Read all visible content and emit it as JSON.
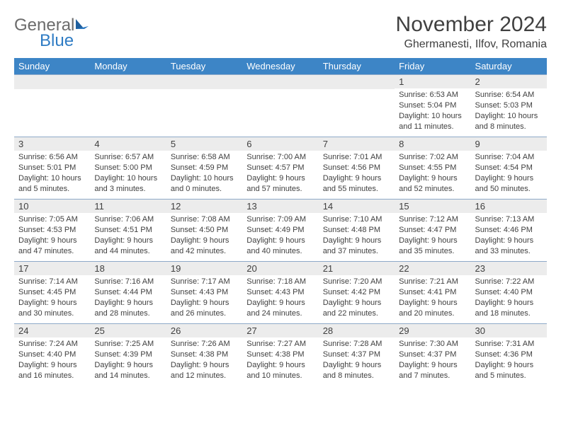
{
  "logo": {
    "text_gray": "General",
    "text_blue": "Blue"
  },
  "title": "November 2024",
  "location": "Ghermanesti, Ilfov, Romania",
  "colors": {
    "header_bg": "#3d85c6",
    "header_text": "#ffffff",
    "daynum_bg": "#ececec",
    "text": "#404040",
    "week_border": "#8ea9c9",
    "logo_blue": "#2f7cc4",
    "logo_gray": "#6b6b6b"
  },
  "day_headers": [
    "Sunday",
    "Monday",
    "Tuesday",
    "Wednesday",
    "Thursday",
    "Friday",
    "Saturday"
  ],
  "weeks": [
    [
      {
        "n": "",
        "lines": []
      },
      {
        "n": "",
        "lines": []
      },
      {
        "n": "",
        "lines": []
      },
      {
        "n": "",
        "lines": []
      },
      {
        "n": "",
        "lines": []
      },
      {
        "n": "1",
        "lines": [
          "Sunrise: 6:53 AM",
          "Sunset: 5:04 PM",
          "Daylight: 10 hours and 11 minutes."
        ]
      },
      {
        "n": "2",
        "lines": [
          "Sunrise: 6:54 AM",
          "Sunset: 5:03 PM",
          "Daylight: 10 hours and 8 minutes."
        ]
      }
    ],
    [
      {
        "n": "3",
        "lines": [
          "Sunrise: 6:56 AM",
          "Sunset: 5:01 PM",
          "Daylight: 10 hours and 5 minutes."
        ]
      },
      {
        "n": "4",
        "lines": [
          "Sunrise: 6:57 AM",
          "Sunset: 5:00 PM",
          "Daylight: 10 hours and 3 minutes."
        ]
      },
      {
        "n": "5",
        "lines": [
          "Sunrise: 6:58 AM",
          "Sunset: 4:59 PM",
          "Daylight: 10 hours and 0 minutes."
        ]
      },
      {
        "n": "6",
        "lines": [
          "Sunrise: 7:00 AM",
          "Sunset: 4:57 PM",
          "Daylight: 9 hours and 57 minutes."
        ]
      },
      {
        "n": "7",
        "lines": [
          "Sunrise: 7:01 AM",
          "Sunset: 4:56 PM",
          "Daylight: 9 hours and 55 minutes."
        ]
      },
      {
        "n": "8",
        "lines": [
          "Sunrise: 7:02 AM",
          "Sunset: 4:55 PM",
          "Daylight: 9 hours and 52 minutes."
        ]
      },
      {
        "n": "9",
        "lines": [
          "Sunrise: 7:04 AM",
          "Sunset: 4:54 PM",
          "Daylight: 9 hours and 50 minutes."
        ]
      }
    ],
    [
      {
        "n": "10",
        "lines": [
          "Sunrise: 7:05 AM",
          "Sunset: 4:53 PM",
          "Daylight: 9 hours and 47 minutes."
        ]
      },
      {
        "n": "11",
        "lines": [
          "Sunrise: 7:06 AM",
          "Sunset: 4:51 PM",
          "Daylight: 9 hours and 44 minutes."
        ]
      },
      {
        "n": "12",
        "lines": [
          "Sunrise: 7:08 AM",
          "Sunset: 4:50 PM",
          "Daylight: 9 hours and 42 minutes."
        ]
      },
      {
        "n": "13",
        "lines": [
          "Sunrise: 7:09 AM",
          "Sunset: 4:49 PM",
          "Daylight: 9 hours and 40 minutes."
        ]
      },
      {
        "n": "14",
        "lines": [
          "Sunrise: 7:10 AM",
          "Sunset: 4:48 PM",
          "Daylight: 9 hours and 37 minutes."
        ]
      },
      {
        "n": "15",
        "lines": [
          "Sunrise: 7:12 AM",
          "Sunset: 4:47 PM",
          "Daylight: 9 hours and 35 minutes."
        ]
      },
      {
        "n": "16",
        "lines": [
          "Sunrise: 7:13 AM",
          "Sunset: 4:46 PM",
          "Daylight: 9 hours and 33 minutes."
        ]
      }
    ],
    [
      {
        "n": "17",
        "lines": [
          "Sunrise: 7:14 AM",
          "Sunset: 4:45 PM",
          "Daylight: 9 hours and 30 minutes."
        ]
      },
      {
        "n": "18",
        "lines": [
          "Sunrise: 7:16 AM",
          "Sunset: 4:44 PM",
          "Daylight: 9 hours and 28 minutes."
        ]
      },
      {
        "n": "19",
        "lines": [
          "Sunrise: 7:17 AM",
          "Sunset: 4:43 PM",
          "Daylight: 9 hours and 26 minutes."
        ]
      },
      {
        "n": "20",
        "lines": [
          "Sunrise: 7:18 AM",
          "Sunset: 4:43 PM",
          "Daylight: 9 hours and 24 minutes."
        ]
      },
      {
        "n": "21",
        "lines": [
          "Sunrise: 7:20 AM",
          "Sunset: 4:42 PM",
          "Daylight: 9 hours and 22 minutes."
        ]
      },
      {
        "n": "22",
        "lines": [
          "Sunrise: 7:21 AM",
          "Sunset: 4:41 PM",
          "Daylight: 9 hours and 20 minutes."
        ]
      },
      {
        "n": "23",
        "lines": [
          "Sunrise: 7:22 AM",
          "Sunset: 4:40 PM",
          "Daylight: 9 hours and 18 minutes."
        ]
      }
    ],
    [
      {
        "n": "24",
        "lines": [
          "Sunrise: 7:24 AM",
          "Sunset: 4:40 PM",
          "Daylight: 9 hours and 16 minutes."
        ]
      },
      {
        "n": "25",
        "lines": [
          "Sunrise: 7:25 AM",
          "Sunset: 4:39 PM",
          "Daylight: 9 hours and 14 minutes."
        ]
      },
      {
        "n": "26",
        "lines": [
          "Sunrise: 7:26 AM",
          "Sunset: 4:38 PM",
          "Daylight: 9 hours and 12 minutes."
        ]
      },
      {
        "n": "27",
        "lines": [
          "Sunrise: 7:27 AM",
          "Sunset: 4:38 PM",
          "Daylight: 9 hours and 10 minutes."
        ]
      },
      {
        "n": "28",
        "lines": [
          "Sunrise: 7:28 AM",
          "Sunset: 4:37 PM",
          "Daylight: 9 hours and 8 minutes."
        ]
      },
      {
        "n": "29",
        "lines": [
          "Sunrise: 7:30 AM",
          "Sunset: 4:37 PM",
          "Daylight: 9 hours and 7 minutes."
        ]
      },
      {
        "n": "30",
        "lines": [
          "Sunrise: 7:31 AM",
          "Sunset: 4:36 PM",
          "Daylight: 9 hours and 5 minutes."
        ]
      }
    ]
  ]
}
